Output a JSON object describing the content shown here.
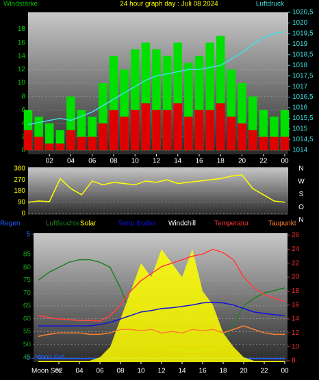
{
  "chart_data": [
    {
      "type": "bar",
      "title": "24 hour graph day : Juli 08 2024",
      "y_label": "Windstärke",
      "y2_label": "Luftdruck",
      "x": [
        0,
        1,
        2,
        3,
        4,
        5,
        6,
        7,
        8,
        9,
        10,
        11,
        12,
        13,
        14,
        15,
        16,
        17,
        18,
        19,
        20,
        21,
        22,
        23,
        24
      ],
      "xlim": [
        0,
        24
      ],
      "xticks": [
        {
          "value": 2,
          "label": "02"
        },
        {
          "value": 4,
          "label": "04"
        },
        {
          "value": 6,
          "label": "06"
        },
        {
          "value": 8,
          "label": "08"
        },
        10,
        12,
        14,
        16,
        18,
        20,
        22,
        {
          "value": 24,
          "label": "00"
        }
      ],
      "ylim": [
        -0.6,
        20.5
      ],
      "yticks": [
        0,
        2,
        4,
        6,
        8,
        10,
        12,
        14,
        16,
        18
      ],
      "y2lim": [
        1013.8,
        1020.5
      ],
      "y2ticks": [
        1014,
        {
          "value": 1014.5,
          "label": "1014,5"
        },
        1015,
        {
          "value": 1015.5,
          "label": "1015,5"
        },
        1016,
        {
          "value": 1016.5,
          "label": "1016,5"
        },
        1017,
        {
          "value": 1017.5,
          "label": "1017,5"
        },
        1018,
        {
          "value": 1018.5,
          "label": "1018,5"
        },
        1019,
        {
          "value": 1019.5,
          "label": "1019,5"
        },
        1020,
        {
          "value": 1020.5,
          "label": "1020,5"
        }
      ],
      "grid": true,
      "series": [
        {
          "type": "bar",
          "color": "#00e000",
          "values": [
            6,
            5,
            4,
            3,
            8,
            6,
            5,
            10,
            14,
            12,
            15,
            16,
            15,
            14,
            16,
            13,
            14,
            16,
            17,
            12,
            10,
            8,
            6,
            5,
            6
          ]
        },
        {
          "type": "bar",
          "color": "#e00000",
          "values": [
            3,
            2,
            1,
            1,
            3,
            2,
            2,
            4,
            6,
            5,
            6,
            7,
            6,
            6,
            7,
            5,
            6,
            6,
            7,
            5,
            4,
            3,
            2,
            2,
            2
          ]
        },
        {
          "type": "line",
          "axis": "y2",
          "color": "#40e0e0",
          "values": [
            1015.2,
            1015.3,
            1015.4,
            1015.5,
            1015.4,
            1015.6,
            1015.8,
            1016.1,
            1016.4,
            1016.7,
            1017.0,
            1017.3,
            1017.5,
            1017.6,
            1017.7,
            1017.8,
            1017.8,
            1017.9,
            1018.0,
            1018.3,
            1018.6,
            1019.0,
            1019.3,
            1019.5,
            1019.6
          ]
        }
      ]
    },
    {
      "type": "line",
      "x": [
        0,
        1,
        2,
        3,
        4,
        5,
        6,
        7,
        8,
        9,
        10,
        11,
        12,
        13,
        14,
        15,
        16,
        17,
        18,
        19,
        20,
        21,
        22,
        23,
        24
      ],
      "xlim": [
        0,
        24
      ],
      "ylim": [
        -10,
        370
      ],
      "yticks": [
        0,
        90,
        180,
        270,
        360
      ],
      "compass": [
        "N",
        "W",
        "S",
        "O",
        "N"
      ],
      "grid": true,
      "series": [
        {
          "type": "line",
          "color": "#ffff00",
          "values": [
            90,
            100,
            95,
            280,
            200,
            150,
            260,
            230,
            250,
            240,
            230,
            260,
            250,
            270,
            240,
            250,
            260,
            270,
            280,
            300,
            310,
            200,
            150,
            100,
            90
          ]
        }
      ]
    },
    {
      "type": "line",
      "x_start_label": "Moon Set",
      "moon_label": "Moon Set",
      "x": [
        0,
        1,
        2,
        3,
        4,
        5,
        6,
        7,
        8,
        9,
        10,
        11,
        12,
        13,
        14,
        15,
        16,
        17,
        18,
        19,
        20,
        21,
        22,
        23,
        24
      ],
      "xlim": [
        0,
        24
      ],
      "xticks": [
        {
          "value": 2,
          "label": "02"
        },
        {
          "value": 4,
          "label": "04"
        },
        {
          "value": 6,
          "label": "06"
        },
        {
          "value": 8,
          "label": "08"
        },
        10,
        12,
        14,
        16,
        18,
        20,
        22,
        {
          "value": 24,
          "label": "00"
        }
      ],
      "ylim": [
        43.1,
        93.3
      ],
      "yticks": [
        45,
        50,
        55,
        60,
        65,
        70,
        75,
        80,
        85
      ],
      "y2lim": [
        7.8,
        26.3
      ],
      "y2ticks": [
        8,
        10,
        12,
        14,
        16,
        18,
        20,
        22,
        24,
        26
      ],
      "y3lim": [
        -0.15,
        5.05
      ],
      "y3ticks": [
        0,
        5
      ],
      "grid": true,
      "series": [
        {
          "name": "Regen",
          "type": "line",
          "axis": "y3",
          "color": "#2060ff",
          "values": [
            0,
            0,
            0,
            0,
            0,
            0,
            0,
            0,
            0,
            0,
            0,
            0,
            0,
            0,
            0,
            0,
            0,
            0,
            0,
            0,
            0,
            0,
            0,
            0,
            0
          ]
        },
        {
          "name": "Luftfeuchte",
          "type": "line",
          "color": "#208020",
          "values": [
            75,
            78,
            80,
            82,
            83,
            83,
            82,
            80,
            72,
            62,
            52,
            50,
            49,
            48,
            48,
            47,
            48,
            48,
            50,
            58,
            65,
            68,
            70,
            71,
            72
          ]
        },
        {
          "name": "Solar",
          "type": "area",
          "axis": "y2",
          "color": "#ffff00",
          "values": [
            8,
            8,
            8,
            8,
            8,
            8,
            8.5,
            10,
            14,
            18,
            22,
            20,
            24,
            22,
            20,
            24,
            18,
            16,
            12,
            10,
            8.5,
            8,
            8,
            8,
            8
          ]
        },
        {
          "name": "Temp Boden",
          "type": "line",
          "axis": "y2",
          "color": "#1010e0",
          "values": [
            13,
            13,
            13,
            13,
            13,
            13,
            13.2,
            13.5,
            14,
            14.5,
            15,
            15.2,
            15.5,
            15.6,
            15.8,
            16,
            16.3,
            16.4,
            16.3,
            16,
            15.5,
            15,
            14.8,
            14.6,
            14.5
          ]
        },
        {
          "name": "Windchill",
          "type": "line",
          "axis": "y2",
          "color": "#ffffff",
          "values": [
            14.5,
            14.2,
            14,
            13.9,
            13.8,
            13.8,
            13.7,
            14.5,
            16,
            18,
            19.5,
            20.5,
            21.5,
            22,
            22.5,
            23,
            23.3,
            24,
            23.5,
            22.5,
            20,
            18.5,
            17.5,
            17,
            16.5
          ]
        },
        {
          "name": "Temperatur",
          "type": "line",
          "axis": "y2",
          "color": "#ff3030",
          "values": [
            14.5,
            14.2,
            14,
            13.9,
            13.8,
            13.8,
            13.7,
            14.5,
            16,
            18,
            19.5,
            20.5,
            21.5,
            22,
            22.5,
            23,
            23.3,
            24,
            23.5,
            22.5,
            20,
            18.5,
            17.5,
            17,
            16.5
          ]
        },
        {
          "name": "Taupunkt",
          "type": "line",
          "axis": "y2",
          "color": "#ff8030",
          "values": [
            11.5,
            11.8,
            12,
            12,
            12,
            11.8,
            11.8,
            12,
            12.5,
            12.5,
            12.3,
            12.5,
            12,
            12.2,
            12,
            12.5,
            12.3,
            12.5,
            12,
            12.5,
            13,
            12.5,
            12,
            11.8,
            11.8
          ]
        }
      ]
    }
  ]
}
